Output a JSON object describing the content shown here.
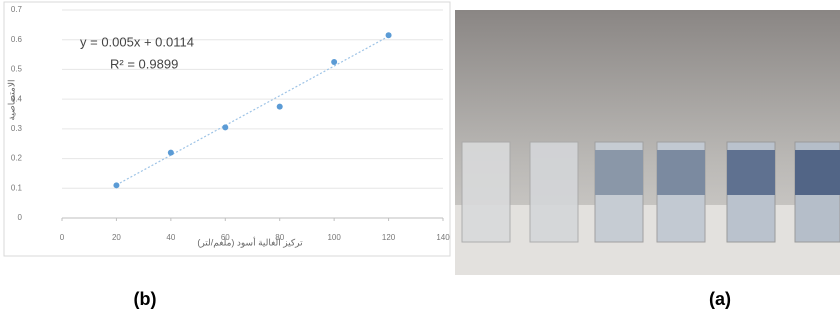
{
  "chart_data": {
    "type": "scatter",
    "panel_label": "(b)",
    "x_label": "تركيز الغالية أسود (ملغم/لتر)",
    "y_label": "الامتصاصية",
    "equation": "y = 0.005x + 0.0114",
    "r_squared": "R² = 0.9899",
    "x": [
      20,
      40,
      60,
      80,
      100,
      120
    ],
    "values": [
      0.11,
      0.22,
      0.305,
      0.375,
      0.525,
      0.615
    ],
    "color": "#5b9bd5",
    "trendline": {
      "slope": 0.005,
      "intercept": 0.0114,
      "color": "#9dc3e6"
    },
    "xlim": [
      0,
      140
    ],
    "xticks": [
      0,
      20,
      40,
      60,
      80,
      100,
      120,
      140
    ],
    "ylim": [
      0,
      0.7
    ],
    "yticks": [
      0,
      0.1,
      0.2,
      0.3,
      0.4,
      0.5,
      0.6,
      0.7
    ],
    "grid": true
  },
  "photo": {
    "panel_label": "(a)"
  }
}
